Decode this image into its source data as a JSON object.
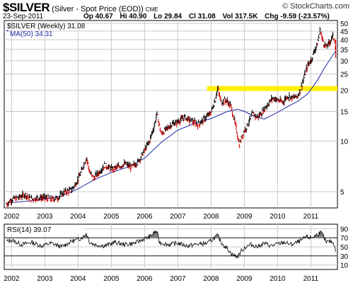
{
  "header": {
    "symbol": "$SILVER",
    "description": "(Silver - Spot Price (EOD))",
    "exchange": "CME",
    "site": "StockCharts.com",
    "site_prefix": "©",
    "date": "23-Sep-2011",
    "quote": {
      "op": "Op 40.67",
      "hi": "Hi 40.90",
      "lo": "Lo 29.84",
      "cl": "Cl 31.08",
      "vol": "Vol 317.5K",
      "chg": "Chg -9.59 (-23.57%)"
    }
  },
  "colors": {
    "price_up": "#000000",
    "price_down": "#cc0000",
    "ma": "#1f2aa6",
    "highlight": "#ffef00",
    "grid": "#c8c8c8",
    "rsi_fill": "#808080"
  },
  "chart_data": [
    {
      "type": "line",
      "legend": [
        "$SILVER (Weekly) 31.08",
        "MA(50) 34.31"
      ],
      "x_tick_labels": [
        "2002",
        "2003",
        "2004",
        "2005",
        "2006",
        "2007",
        "2008",
        "2009",
        "2010",
        "2011"
      ],
      "y_tick_labels": [
        "50",
        "45",
        "40",
        "35",
        "30",
        "25",
        "20",
        "15",
        "10",
        "5"
      ],
      "y_scale": "log",
      "ylim": [
        4,
        52
      ],
      "highlight_level": 20.5,
      "series": [
        {
          "name": "$SILVER (Weekly)",
          "x": [
            2001.85,
            2002.0,
            2002.2,
            2002.4,
            2002.6,
            2002.8,
            2003.0,
            2003.2,
            2003.4,
            2003.6,
            2003.8,
            2004.0,
            2004.1,
            2004.25,
            2004.35,
            2004.45,
            2004.6,
            2004.8,
            2005.0,
            2005.2,
            2005.4,
            2005.6,
            2005.8,
            2006.0,
            2006.15,
            2006.3,
            2006.37,
            2006.5,
            2006.6,
            2006.8,
            2007.0,
            2007.2,
            2007.4,
            2007.6,
            2007.8,
            2008.0,
            2008.1,
            2008.2,
            2008.3,
            2008.45,
            2008.6,
            2008.75,
            2008.85,
            2008.95,
            2009.1,
            2009.25,
            2009.4,
            2009.55,
            2009.7,
            2009.85,
            2010.0,
            2010.15,
            2010.3,
            2010.45,
            2010.6,
            2010.7,
            2010.8,
            2010.9,
            2011.0,
            2011.1,
            2011.2,
            2011.28,
            2011.35,
            2011.45,
            2011.55,
            2011.65,
            2011.72,
            2011.75
          ],
          "y": [
            4.2,
            4.5,
            4.6,
            4.8,
            4.5,
            4.6,
            4.6,
            4.5,
            4.6,
            5.0,
            5.1,
            5.9,
            6.6,
            8.0,
            6.5,
            6.0,
            6.4,
            7.2,
            6.8,
            7.0,
            7.3,
            7.0,
            7.5,
            8.8,
            10.0,
            12.5,
            14.5,
            11.0,
            11.5,
            12.5,
            13.0,
            13.8,
            13.2,
            12.5,
            13.5,
            14.8,
            17.0,
            20.5,
            17.0,
            17.5,
            16.0,
            12.0,
            9.5,
            11.0,
            12.5,
            14.5,
            13.8,
            15.0,
            16.5,
            18.0,
            17.5,
            17.0,
            18.5,
            18.0,
            18.5,
            20.5,
            24.0,
            28.0,
            30.0,
            34.0,
            38.0,
            46.0,
            40.0,
            36.0,
            38.0,
            42.0,
            40.0,
            31.08
          ]
        },
        {
          "name": "MA(50)",
          "x": [
            2002.0,
            2002.5,
            2003.0,
            2003.5,
            2004.0,
            2004.5,
            2005.0,
            2005.5,
            2006.0,
            2006.5,
            2007.0,
            2007.5,
            2008.0,
            2008.5,
            2008.8,
            2009.0,
            2009.3,
            2009.6,
            2010.0,
            2010.3,
            2010.6,
            2010.9,
            2011.0,
            2011.2,
            2011.4,
            2011.6,
            2011.75
          ],
          "y": [
            4.3,
            4.4,
            4.5,
            4.7,
            5.2,
            5.9,
            6.5,
            7.0,
            7.9,
            9.8,
            11.6,
            12.7,
            13.6,
            15.0,
            15.4,
            15.0,
            14.0,
            13.5,
            14.8,
            16.0,
            17.2,
            19.0,
            20.2,
            23.0,
            27.0,
            31.0,
            34.31
          ]
        }
      ]
    },
    {
      "type": "line",
      "legend": [
        "RSI(14) 39.07"
      ],
      "y_tick_labels": [
        "90",
        "70",
        "50",
        "30",
        "10"
      ],
      "ylim": [
        0,
        100
      ],
      "reference_lines": [
        70,
        30
      ],
      "series": [
        {
          "name": "RSI(14)",
          "x": [
            2001.85,
            2002.0,
            2002.3,
            2002.6,
            2002.9,
            2003.2,
            2003.5,
            2003.8,
            2004.0,
            2004.15,
            2004.25,
            2004.35,
            2004.5,
            2004.8,
            2005.1,
            2005.4,
            2005.7,
            2006.0,
            2006.15,
            2006.3,
            2006.37,
            2006.45,
            2006.7,
            2007.0,
            2007.3,
            2007.6,
            2007.9,
            2008.1,
            2008.2,
            2008.3,
            2008.5,
            2008.65,
            2008.8,
            2008.9,
            2009.0,
            2009.2,
            2009.4,
            2009.6,
            2009.8,
            2010.0,
            2010.2,
            2010.4,
            2010.6,
            2010.75,
            2010.85,
            2011.0,
            2011.15,
            2011.28,
            2011.35,
            2011.45,
            2011.6,
            2011.72,
            2011.75
          ],
          "y": [
            62,
            65,
            55,
            60,
            52,
            58,
            50,
            62,
            66,
            72,
            80,
            60,
            55,
            52,
            60,
            55,
            58,
            68,
            72,
            82,
            84,
            60,
            55,
            58,
            52,
            56,
            58,
            70,
            75,
            60,
            45,
            32,
            28,
            40,
            48,
            55,
            50,
            58,
            52,
            56,
            60,
            55,
            60,
            65,
            72,
            70,
            75,
            82,
            78,
            60,
            62,
            55,
            39.07
          ]
        }
      ]
    }
  ]
}
